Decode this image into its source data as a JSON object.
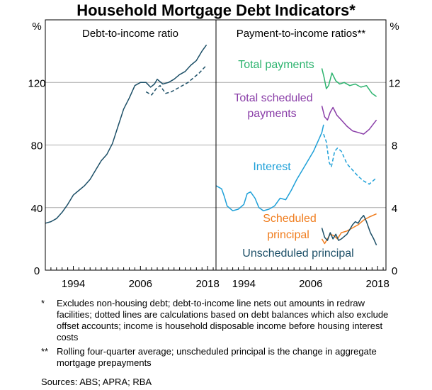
{
  "title": "Household Mortgage Debt Indicators*",
  "unit_label": "%",
  "chart_data": [
    {
      "type": "line",
      "title": "Debt-to-income ratio",
      "ylim": [
        0,
        160
      ],
      "yticks": [
        0,
        40,
        80,
        120
      ],
      "xlim": [
        1989,
        2019.5
      ],
      "xticks": [
        1994,
        2006,
        2018
      ],
      "grid": true,
      "series": [
        {
          "style": "solid",
          "color": "#1c4f67",
          "points": [
            [
              1989,
              30
            ],
            [
              1990,
              31
            ],
            [
              1991,
              33
            ],
            [
              1992,
              37
            ],
            [
              1993,
              42
            ],
            [
              1994,
              48
            ],
            [
              1995,
              51
            ],
            [
              1996,
              54
            ],
            [
              1997,
              58
            ],
            [
              1998,
              64
            ],
            [
              1999,
              70
            ],
            [
              2000,
              74
            ],
            [
              2001,
              81
            ],
            [
              2002,
              92
            ],
            [
              2003,
              103
            ],
            [
              2004,
              110
            ],
            [
              2005,
              118
            ],
            [
              2006,
              120
            ],
            [
              2007,
              120
            ],
            [
              2007.8,
              117
            ],
            [
              2008.5,
              119
            ],
            [
              2009,
              122
            ],
            [
              2010,
              119
            ],
            [
              2011,
              120
            ],
            [
              2012,
              122
            ],
            [
              2013,
              125
            ],
            [
              2014,
              127
            ],
            [
              2015,
              131
            ],
            [
              2016,
              134
            ],
            [
              2017,
              140
            ],
            [
              2017.8,
              144
            ]
          ]
        },
        {
          "style": "dashed",
          "color": "#1c4f67",
          "points": [
            [
              2007,
              114
            ],
            [
              2008,
              112
            ],
            [
              2008.8,
              116
            ],
            [
              2009.5,
              118
            ],
            [
              2010.5,
              113
            ],
            [
              2011.5,
              114
            ],
            [
              2012.5,
              116
            ],
            [
              2013.5,
              118
            ],
            [
              2014.5,
              120
            ],
            [
              2015.5,
              123
            ],
            [
              2016.5,
              126
            ],
            [
              2017.8,
              131
            ]
          ]
        }
      ]
    },
    {
      "type": "line",
      "title": "Payment-to-income ratios**",
      "ylim": [
        0,
        16
      ],
      "yticks": [
        0,
        4,
        8,
        12
      ],
      "xlim": [
        1989,
        2019.5
      ],
      "xticks": [
        1994,
        2006,
        2018
      ],
      "grid": true,
      "series": [
        {
          "name": "Total payments",
          "color": "#2cb36e",
          "points": [
            [
              2008,
              12.9
            ],
            [
              2008.4,
              12.3
            ],
            [
              2008.8,
              11.6
            ],
            [
              2009.2,
              11.8
            ],
            [
              2009.8,
              12.6
            ],
            [
              2010.5,
              12.1
            ],
            [
              2011.2,
              11.9
            ],
            [
              2012,
              12.0
            ],
            [
              2013,
              11.8
            ],
            [
              2014,
              11.9
            ],
            [
              2015,
              11.7
            ],
            [
              2016,
              11.8
            ],
            [
              2017,
              11.3
            ],
            [
              2017.8,
              11.1
            ]
          ]
        },
        {
          "name": "Total scheduled payments",
          "color": "#8a3ea8",
          "points": [
            [
              2008,
              10.5
            ],
            [
              2008.5,
              9.8
            ],
            [
              2009,
              9.6
            ],
            [
              2009.5,
              10.1
            ],
            [
              2010,
              10.4
            ],
            [
              2010.7,
              9.9
            ],
            [
              2011.5,
              9.6
            ],
            [
              2012.5,
              9.2
            ],
            [
              2013.5,
              8.9
            ],
            [
              2014.5,
              8.8
            ],
            [
              2015.5,
              8.7
            ],
            [
              2016.5,
              9.0
            ],
            [
              2017.8,
              9.6
            ]
          ]
        },
        {
          "name": "Interest",
          "style": "solid",
          "color": "#1ea0d8",
          "points": [
            [
              1989,
              5.4
            ],
            [
              1990,
              5.2
            ],
            [
              1990.5,
              4.7
            ],
            [
              1991,
              4.1
            ],
            [
              1992,
              3.8
            ],
            [
              1993,
              3.9
            ],
            [
              1994,
              4.2
            ],
            [
              1994.6,
              4.9
            ],
            [
              1995.2,
              5.0
            ],
            [
              1996,
              4.6
            ],
            [
              1996.7,
              4.0
            ],
            [
              1997.5,
              3.8
            ],
            [
              1998.5,
              3.9
            ],
            [
              1999.5,
              4.1
            ],
            [
              2000.5,
              4.6
            ],
            [
              2001.5,
              4.5
            ],
            [
              2002.5,
              5.1
            ],
            [
              2003.5,
              5.8
            ],
            [
              2004.5,
              6.4
            ],
            [
              2005.5,
              7.0
            ],
            [
              2006.5,
              7.6
            ],
            [
              2007.5,
              8.4
            ],
            [
              2008,
              8.8
            ],
            [
              2008.3,
              9.3
            ]
          ]
        },
        {
          "name": "Interest",
          "style": "dashed",
          "color": "#1ea0d8",
          "points": [
            [
              2008.3,
              8.7
            ],
            [
              2008.8,
              8.2
            ],
            [
              2009.3,
              6.9
            ],
            [
              2009.7,
              6.6
            ],
            [
              2010.3,
              7.6
            ],
            [
              2010.8,
              7.8
            ],
            [
              2011.5,
              7.6
            ],
            [
              2012.5,
              6.8
            ],
            [
              2013.5,
              6.4
            ],
            [
              2014.5,
              6.0
            ],
            [
              2015.5,
              5.7
            ],
            [
              2016.5,
              5.5
            ],
            [
              2017.8,
              5.9
            ]
          ]
        },
        {
          "name": "Scheduled principal",
          "color": "#f07d1e",
          "points": [
            [
              2008,
              2.0
            ],
            [
              2008.5,
              1.7
            ],
            [
              2009,
              2.0
            ],
            [
              2009.5,
              2.3
            ],
            [
              2010.2,
              2.2
            ],
            [
              2010.8,
              2.0
            ],
            [
              2011.5,
              2.4
            ],
            [
              2012.5,
              2.5
            ],
            [
              2013.5,
              2.7
            ],
            [
              2014.5,
              2.9
            ],
            [
              2015.5,
              3.2
            ],
            [
              2016.5,
              3.4
            ],
            [
              2017.8,
              3.6
            ]
          ]
        },
        {
          "name": "Unscheduled principal",
          "color": "#1c4f67",
          "points": [
            [
              2008,
              2.7
            ],
            [
              2008.5,
              2.1
            ],
            [
              2009,
              1.9
            ],
            [
              2009.5,
              2.4
            ],
            [
              2010,
              2.0
            ],
            [
              2010.5,
              2.3
            ],
            [
              2011,
              1.9
            ],
            [
              2011.5,
              2.0
            ],
            [
              2012.5,
              2.3
            ],
            [
              2013,
              2.6
            ],
            [
              2013.5,
              2.9
            ],
            [
              2014,
              3.1
            ],
            [
              2014.5,
              3.0
            ],
            [
              2015,
              3.3
            ],
            [
              2015.5,
              3.5
            ],
            [
              2016,
              3.1
            ],
            [
              2016.7,
              2.4
            ],
            [
              2017.3,
              2.0
            ],
            [
              2017.8,
              1.6
            ]
          ]
        }
      ]
    }
  ],
  "notes": [
    {
      "symbol": "*",
      "text": "Excludes non-housing debt; debt-to-income line nets out amounts in redraw facilities; dotted lines are calculations based on debt balances which also exclude offset accounts; income is household disposable income before housing interest costs"
    },
    {
      "symbol": "**",
      "text": "Rolling four-quarter average; unscheduled principal is the change in aggregate mortgage prepayments"
    }
  ],
  "sources": "Sources:   ABS; APRA; RBA",
  "labels": {
    "total_payments": "Total payments",
    "total_scheduled_1": "Total scheduled",
    "total_scheduled_2": "payments",
    "interest": "Interest",
    "scheduled_principal_1": "Scheduled",
    "scheduled_principal_2": "principal",
    "unscheduled_principal": "Unscheduled principal"
  },
  "colors": {
    "grid": "#a9a9a9",
    "frame": "#000000"
  }
}
